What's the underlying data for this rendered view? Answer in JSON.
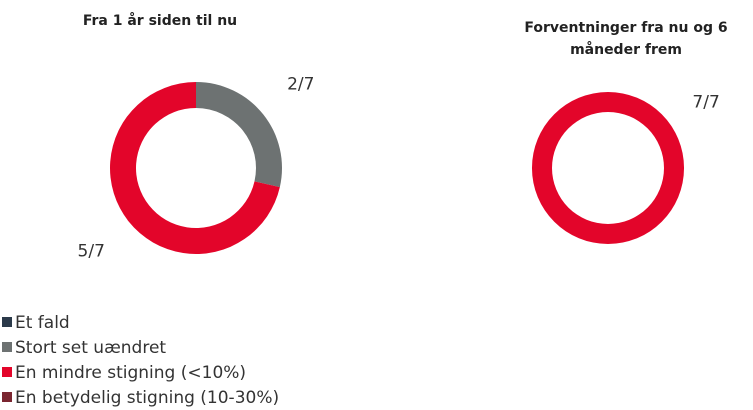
{
  "legend": {
    "entries": [
      {
        "name": "Et fald",
        "color": "#2b3a4a"
      },
      {
        "name": "Stort set uændret",
        "color": "#6d7272"
      },
      {
        "name": "En mindre stigning (<10%)",
        "color": "#e3052a"
      },
      {
        "name": "En betydelig stigning (10-30%)",
        "color": "#7a2530"
      }
    ]
  },
  "chart_data": [
    {
      "type": "donut",
      "title": "Fra 1 år siden til nu",
      "values": [
        0,
        2,
        5,
        0
      ],
      "value_labels": [
        null,
        "2/7",
        "5/7",
        null
      ]
    },
    {
      "type": "donut",
      "title": "Forventninger fra nu og 6 måneder frem",
      "values": [
        0,
        0,
        7,
        0
      ],
      "value_labels": [
        null,
        null,
        "7/7",
        null
      ]
    }
  ]
}
